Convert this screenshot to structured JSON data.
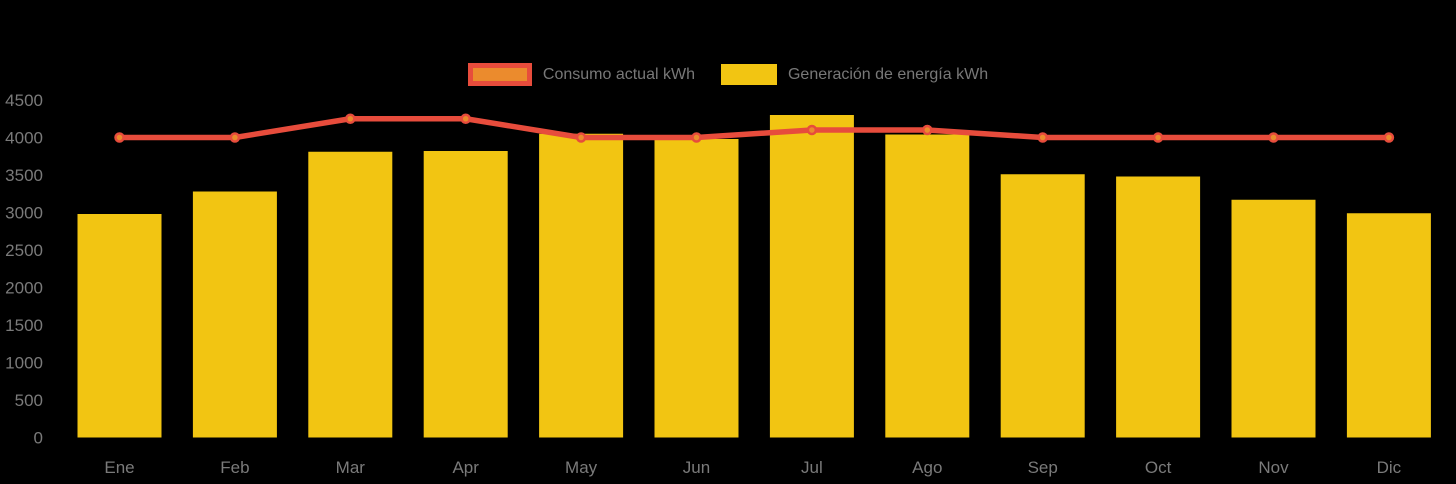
{
  "page": {
    "background": "#000000",
    "axis_label_color": "#7A7A7A"
  },
  "legend": {
    "position": "top-center",
    "items": [
      {
        "label": "Consumo actual kWh",
        "series_type": "line",
        "swatch_fill": "#EB8B2D",
        "swatch_border": "#E74C3C"
      },
      {
        "label": "Generación de energía kWh",
        "series_type": "bar",
        "swatch_fill": "#F2C512",
        "swatch_border": null
      }
    ]
  },
  "chart_data": {
    "type": "bar",
    "subtype": "bar-with-line-overlay",
    "title": "",
    "xlabel": "",
    "ylabel": "",
    "categories": [
      "Ene",
      "Feb",
      "Mar",
      "Apr",
      "May",
      "Jun",
      "Jul",
      "Ago",
      "Sep",
      "Oct",
      "Nov",
      "Dic"
    ],
    "series": [
      {
        "name": "Consumo actual kWh",
        "type": "line",
        "color": "#E74C3C",
        "marker_fill": "#EB8B2D",
        "marker_stroke": "#E74C3C",
        "values": [
          4000,
          4000,
          4250,
          4250,
          4000,
          4000,
          4100,
          4100,
          4000,
          4000,
          4000,
          4000
        ]
      },
      {
        "name": "Generación de energía kWh",
        "type": "bar",
        "color": "#F2C512",
        "values": [
          2980,
          3280,
          3810,
          3820,
          4050,
          3980,
          4300,
          4040,
          3510,
          3480,
          3170,
          2990
        ]
      }
    ],
    "ylim": [
      0,
      4500
    ],
    "yticks": [
      0,
      500,
      1000,
      1500,
      2000,
      2500,
      3000,
      3500,
      4000,
      4500
    ],
    "grid": false,
    "legend_position": "top-center"
  }
}
